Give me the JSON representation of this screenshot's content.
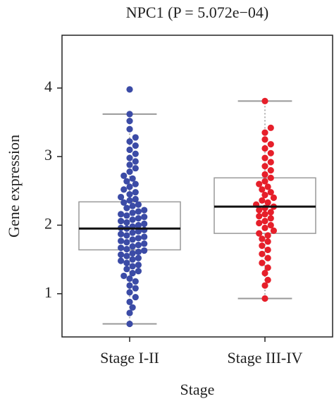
{
  "chart_data": {
    "type": "box_swarm",
    "title": "NPC1 (P = 5.072e−04)",
    "x_label": "Stage",
    "y_label": "Gene expression",
    "categories": [
      "Stage I-II",
      "Stage III-IV"
    ],
    "colors": [
      "#3b4ba6",
      "#e61f2a"
    ],
    "ylim": [
      0.37,
      4.77
    ],
    "yticks": [
      1,
      2,
      3,
      4
    ],
    "stats": [
      {
        "whisker_low": 0.56,
        "q1": 1.64,
        "median": 1.95,
        "q3": 2.34,
        "whisker_high": 3.62
      },
      {
        "whisker_low": 0.93,
        "q1": 1.88,
        "median": 2.27,
        "q3": 2.69,
        "whisker_high": 3.81
      }
    ],
    "points": [
      [
        0.56,
        0.72,
        0.8,
        0.88,
        0.95,
        1.02,
        1.08,
        1.12,
        1.18,
        1.22,
        1.26,
        1.3,
        1.33,
        1.36,
        1.4,
        1.42,
        1.45,
        1.48,
        1.5,
        1.52,
        1.55,
        1.57,
        1.59,
        1.61,
        1.63,
        1.65,
        1.67,
        1.69,
        1.71,
        1.73,
        1.75,
        1.77,
        1.79,
        1.81,
        1.83,
        1.85,
        1.87,
        1.89,
        1.91,
        1.93,
        1.95,
        1.96,
        1.98,
        2.0,
        2.02,
        2.04,
        2.06,
        2.08,
        2.1,
        2.12,
        2.14,
        2.16,
        2.18,
        2.2,
        2.22,
        2.25,
        2.28,
        2.3,
        2.33,
        2.36,
        2.38,
        2.41,
        2.45,
        2.48,
        2.52,
        2.56,
        2.6,
        2.64,
        2.68,
        2.72,
        2.78,
        2.83,
        2.88,
        2.93,
        2.98,
        3.04,
        3.1,
        3.16,
        3.22,
        3.28,
        3.4,
        3.52,
        3.62,
        3.98
      ],
      [
        0.93,
        1.12,
        1.2,
        1.3,
        1.38,
        1.45,
        1.52,
        1.58,
        1.64,
        1.7,
        1.76,
        1.8,
        1.85,
        1.88,
        1.92,
        1.96,
        2.0,
        2.03,
        2.06,
        2.1,
        2.13,
        2.16,
        2.19,
        2.22,
        2.25,
        2.27,
        2.3,
        2.33,
        2.36,
        2.4,
        2.44,
        2.48,
        2.52,
        2.56,
        2.6,
        2.64,
        2.69,
        2.74,
        2.8,
        2.86,
        2.92,
        2.98,
        3.05,
        3.12,
        3.18,
        3.25,
        3.35,
        3.42,
        3.81
      ]
    ]
  }
}
